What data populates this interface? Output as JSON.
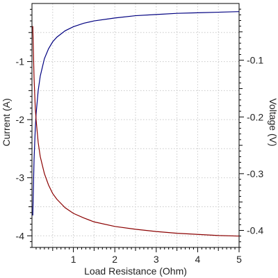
{
  "chart_data": {
    "type": "line",
    "title": "",
    "xlabel": "Load Resistance (Ohm)",
    "ylabel_left": "Current (A)",
    "ylabel_right": "Voltage (V)",
    "xlim": [
      0,
      5
    ],
    "ylim_left": [
      -4.2,
      0.0
    ],
    "ylim_right": [
      -0.43,
      0.0
    ],
    "x_ticks": [
      1,
      2,
      3,
      4,
      5
    ],
    "x_tick_labels": [
      "1",
      "2",
      "3",
      "4",
      "5"
    ],
    "y_left_ticks": [
      -1,
      -2,
      -3,
      -4
    ],
    "y_left_tick_labels": [
      "-1",
      "-2",
      "-3",
      "-4"
    ],
    "y_right_ticks": [
      -0.1,
      -0.2,
      -0.3,
      -0.4
    ],
    "y_right_tick_labels": [
      "-0.1",
      "-0.2",
      "-0.3",
      "-0.4"
    ],
    "grid": true,
    "series": [
      {
        "axis": "left",
        "color": "#000080",
        "x": [
          0.02,
          0.05,
          0.08,
          0.1,
          0.15,
          0.2,
          0.3,
          0.4,
          0.5,
          0.6,
          0.8,
          1.0,
          1.25,
          1.5,
          2.0,
          2.5,
          3.0,
          3.5,
          4.0,
          4.5,
          5.0
        ],
        "values": [
          -3.65,
          -2.7,
          -2.15,
          -1.9,
          -1.5,
          -1.25,
          -0.95,
          -0.78,
          -0.66,
          -0.58,
          -0.47,
          -0.4,
          -0.34,
          -0.3,
          -0.25,
          -0.21,
          -0.19,
          -0.17,
          -0.16,
          -0.15,
          -0.14
        ]
      },
      {
        "axis": "right",
        "color": "#8b0000",
        "x": [
          0.02,
          0.05,
          0.08,
          0.1,
          0.15,
          0.2,
          0.3,
          0.4,
          0.5,
          0.6,
          0.8,
          1.0,
          1.25,
          1.5,
          2.0,
          2.5,
          3.0,
          3.5,
          4.0,
          4.5,
          5.0
        ],
        "values": [
          -0.04,
          -0.13,
          -0.185,
          -0.205,
          -0.245,
          -0.27,
          -0.3,
          -0.32,
          -0.335,
          -0.345,
          -0.36,
          -0.37,
          -0.378,
          -0.385,
          -0.393,
          -0.398,
          -0.402,
          -0.405,
          -0.407,
          -0.409,
          -0.41
        ]
      }
    ]
  }
}
